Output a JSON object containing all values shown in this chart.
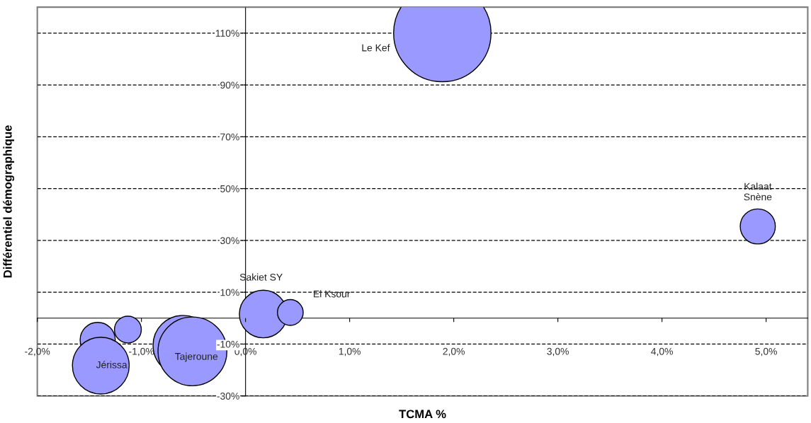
{
  "chart_data": {
    "type": "bubble",
    "xlabel": "TCMA %",
    "ylabel": "Différentiel démographique",
    "x": [
      1.89,
      4.92,
      0.17,
      0.43,
      -1.13,
      -1.42,
      -1.39,
      -0.6,
      -0.51
    ],
    "values": [
      110,
      35.4,
      1.6,
      2.2,
      -4.4,
      -8.4,
      -18.3,
      -10.5,
      -12.8
    ],
    "sizes": [
      1,
      0.13,
      0.24,
      0.07,
      0.076,
      0.13,
      0.34,
      0.38,
      0.5
    ],
    "color": "#9999ff",
    "xlim": [
      -2,
      5.4
    ],
    "ylim": [
      -30,
      120
    ],
    "xticks": [
      {
        "value": -2,
        "label": "-2,0%"
      },
      {
        "value": -1,
        "label": "-1,0%"
      },
      {
        "value": 0,
        "label": "0,0%"
      },
      {
        "value": 1,
        "label": "1,0%"
      },
      {
        "value": 2,
        "label": "2,0%"
      },
      {
        "value": 3,
        "label": "3,0%"
      },
      {
        "value": 4,
        "label": "4,0%"
      },
      {
        "value": 5,
        "label": "5,0%"
      }
    ],
    "yticks": [
      {
        "value": -30,
        "label": "-30%"
      },
      {
        "value": -10,
        "label": "-10%"
      },
      {
        "value": 10,
        "label": "10%"
      },
      {
        "value": 30,
        "label": "30%"
      },
      {
        "value": 50,
        "label": "50%"
      },
      {
        "value": 70,
        "label": "70%"
      },
      {
        "value": 90,
        "label": "90%"
      },
      {
        "value": 110,
        "label": "110%"
      }
    ],
    "grid": "y",
    "annotations": [
      "Le Kef",
      "Kalaat\nSnène",
      "Sakiet SY",
      {
        "text": "El Ksour",
        "x": 0.43,
        "y": 2.2
      },
      {
        "text": "Jérissa",
        "x": -1.39,
        "y": -18.3
      },
      {
        "text": "Tajeroune",
        "x": -0.51,
        "y": -12.8
      }
    ]
  }
}
